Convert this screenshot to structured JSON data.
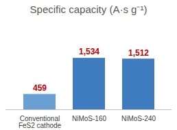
{
  "chart_data": {
    "type": "bar",
    "title": "Specific capacity (A·s g⁻¹)",
    "categories": [
      "Conventional FeS2 cathode",
      "NiMoS-160",
      "NiMoS-240"
    ],
    "values": [
      459,
      1534,
      1512
    ],
    "value_labels": [
      "459",
      "1,534",
      "1,512"
    ],
    "colors": [
      "#6a9fd4",
      "#3f7bbf",
      "#3f7bbf"
    ],
    "ylim": [
      0,
      2500
    ],
    "data_labels": true,
    "tick_labels": "x",
    "grid": false
  }
}
